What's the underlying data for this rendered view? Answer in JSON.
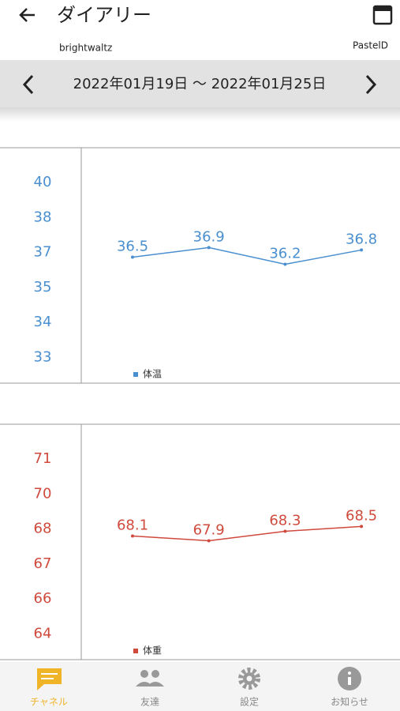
{
  "header": {
    "title": "ダイアリー",
    "user": "brightwaltz",
    "right_label": "PastelD"
  },
  "date_range": "2022年01月19日 〜 2022年01月25日",
  "charts": [
    {
      "type": "line",
      "color": "#4a8fcf",
      "y_labels": [
        40,
        38,
        37,
        35,
        34,
        33
      ],
      "values": [
        36.5,
        36.9,
        36.2,
        36.8
      ],
      "ylim": [
        31.2,
        41.1
      ],
      "legend": "体温"
    },
    {
      "type": "line",
      "color": "#cf4a3c",
      "y_labels": [
        71,
        70,
        68,
        67,
        66,
        64
      ],
      "values": [
        68.1,
        67.9,
        68.3,
        68.5
      ],
      "ylim": [
        62.9,
        72.8
      ],
      "legend": "体重"
    }
  ],
  "nav": [
    "チャネル",
    "友達",
    "設定",
    "お知らせ"
  ]
}
